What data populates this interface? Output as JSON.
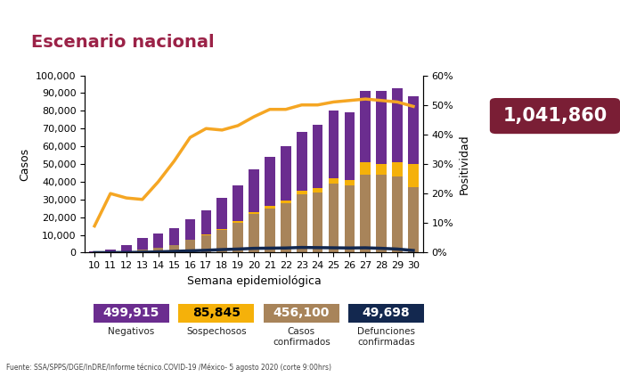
{
  "chart_data": {
    "type": "bar",
    "title": "Escenario nacional",
    "xlabel": "Semana epidemiológica",
    "ylabel": "Casos",
    "y2label": "Positividad",
    "stacked": true,
    "grid": false,
    "categories": [
      "10",
      "11",
      "12",
      "13",
      "14",
      "15",
      "16",
      "17",
      "18",
      "19",
      "20",
      "21",
      "22",
      "23",
      "24",
      "25",
      "26",
      "27",
      "28",
      "29",
      "30"
    ],
    "series": [
      {
        "name": "Negativos",
        "type": "bar",
        "color": "#6b2d8f",
        "values": [
          530,
          1170,
          3150,
          6600,
          8350,
          9800,
          11700,
          13600,
          17500,
          20300,
          24000,
          27500,
          30500,
          33000,
          35500,
          38000,
          38000,
          40000,
          41000,
          42000,
          38000
        ],
        "total": {
          "value": 499915,
          "label": "499,915"
        }
      },
      {
        "name": "Sospechosos",
        "type": "bar",
        "color": "#f5b10a",
        "values": [
          20,
          30,
          50,
          100,
          150,
          200,
          300,
          400,
          500,
          700,
          1000,
          1500,
          1500,
          2000,
          2500,
          3000,
          3000,
          7000,
          6000,
          8000,
          13000
        ],
        "total": {
          "value": 85845,
          "label": "85,845"
        }
      },
      {
        "name": "Casos confirmados",
        "type": "bar",
        "color": "#a8845a",
        "values": [
          50,
          300,
          800,
          1800,
          2500,
          4000,
          7000,
          10000,
          13000,
          17000,
          22000,
          25000,
          28000,
          33000,
          34000,
          39000,
          38000,
          44000,
          44000,
          43000,
          37000
        ],
        "total": {
          "value": 456100,
          "label": "456,100"
        }
      },
      {
        "name": "Defunciones confirmadas",
        "type": "line",
        "color": "#13284f",
        "values": [
          0,
          10,
          50,
          200,
          400,
          700,
          1000,
          1300,
          1700,
          2000,
          2400,
          2500,
          2600,
          2900,
          2800,
          2700,
          2600,
          2700,
          2400,
          2000,
          1200
        ],
        "total": {
          "value": 49698,
          "label": "49,698"
        }
      },
      {
        "name": "Positividad",
        "type": "line",
        "color": "#f5a623",
        "axis": "y2",
        "values": [
          9,
          20,
          18.5,
          18,
          24,
          31,
          39,
          42,
          41.5,
          43,
          46,
          48.5,
          48.5,
          50,
          50,
          51,
          51.5,
          52,
          51.5,
          51,
          49.5
        ]
      }
    ],
    "ylim": [
      0,
      100000
    ],
    "yticks": [
      0,
      {
        "value": 10000,
        "label": "10,000"
      },
      {
        "value": 20000,
        "label": "20,000"
      },
      {
        "value": 30000,
        "label": "30,000"
      },
      {
        "value": 40000,
        "label": "40,000"
      },
      {
        "value": 50000,
        "label": "50,000"
      },
      {
        "value": 60000,
        "label": "60,000"
      },
      {
        "value": 70000,
        "label": "70,000"
      },
      {
        "value": 80000,
        "label": "80,000"
      },
      {
        "value": 90000,
        "label": "90,000"
      },
      {
        "value": 100000,
        "label": "100,000"
      }
    ],
    "y2lim": [
      0,
      60
    ],
    "y2ticks": [
      {
        "value": 0,
        "label": "0%"
      },
      {
        "value": 10,
        "label": "10%"
      },
      {
        "value": 20,
        "label": "20%"
      },
      {
        "value": 30,
        "label": "30%"
      },
      {
        "value": 40,
        "label": "40%"
      },
      {
        "value": 50,
        "label": "50%"
      },
      {
        "value": 60,
        "label": "60%"
      }
    ],
    "total_tested": {
      "value": 1041860,
      "label": "1,041,860"
    },
    "source": "Fuente: SSA/SPPS/DGE/InDRE/Informe técnico.COVID-19 /México- 5 agosto 2020 (corte 9:00hrs)"
  }
}
